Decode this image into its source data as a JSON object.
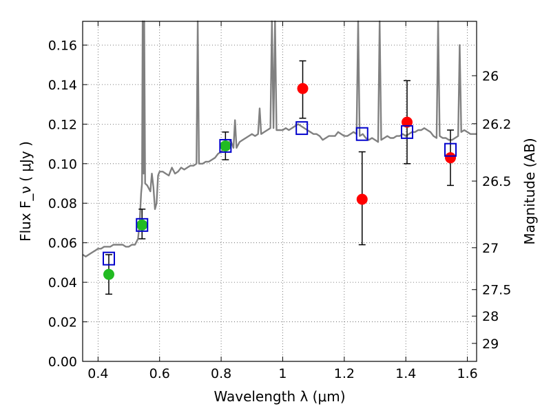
{
  "chart_data": {
    "type": "scatter",
    "xlabel": "Wavelength  λ (μm)",
    "ylabel_left": "Flux  F_ν  ( μJy )",
    "ylabel_right": "Magnitude (AB)",
    "xlim": [
      0.35,
      1.63
    ],
    "ylim": [
      0.0,
      0.172
    ],
    "grid": true,
    "x_ticks": [
      0.4,
      0.6,
      0.8,
      1.0,
      1.2,
      1.4,
      1.6
    ],
    "x_tick_labels": [
      "0.4",
      "0.6",
      "0.8",
      "1",
      "1.2",
      "1.4",
      "1.6"
    ],
    "y_ticks": [
      0.0,
      0.02,
      0.04,
      0.06,
      0.08,
      0.1,
      0.12,
      0.14,
      0.16
    ],
    "y_tick_labels": [
      "0.00",
      "0.02",
      "0.04",
      "0.06",
      "0.08",
      "0.10",
      "0.12",
      "0.14",
      "0.16"
    ],
    "right_ticks": [
      {
        "label": "26",
        "flux": 0.1445
      },
      {
        "label": "26.2",
        "flux": 0.1202
      },
      {
        "label": "26.5",
        "flux": 0.0912
      },
      {
        "label": "27",
        "flux": 0.0575
      },
      {
        "label": "27.5",
        "flux": 0.0363
      },
      {
        "label": "28",
        "flux": 0.0229
      },
      {
        "label": "29",
        "flux": 0.0091
      }
    ],
    "colors": {
      "model": "#808080",
      "green": "#22bb22",
      "red": "#ff0000",
      "square": "#0000cc",
      "errorbar": "#000000",
      "grid": "#555555"
    },
    "model_spectrum": [
      [
        0.35,
        0.054
      ],
      [
        0.36,
        0.053
      ],
      [
        0.37,
        0.054
      ],
      [
        0.38,
        0.055
      ],
      [
        0.39,
        0.056
      ],
      [
        0.4,
        0.057
      ],
      [
        0.41,
        0.057
      ],
      [
        0.42,
        0.058
      ],
      [
        0.43,
        0.058
      ],
      [
        0.44,
        0.058
      ],
      [
        0.45,
        0.059
      ],
      [
        0.46,
        0.059
      ],
      [
        0.47,
        0.059
      ],
      [
        0.48,
        0.059
      ],
      [
        0.49,
        0.058
      ],
      [
        0.5,
        0.058
      ],
      [
        0.51,
        0.059
      ],
      [
        0.52,
        0.059
      ],
      [
        0.53,
        0.062
      ],
      [
        0.535,
        0.07
      ],
      [
        0.54,
        0.085
      ],
      [
        0.543,
        0.09
      ],
      [
        0.545,
        0.172
      ],
      [
        0.548,
        0.095
      ],
      [
        0.55,
        0.172
      ],
      [
        0.553,
        0.09
      ],
      [
        0.56,
        0.089
      ],
      [
        0.57,
        0.086
      ],
      [
        0.575,
        0.095
      ],
      [
        0.58,
        0.088
      ],
      [
        0.585,
        0.077
      ],
      [
        0.59,
        0.08
      ],
      [
        0.595,
        0.094
      ],
      [
        0.6,
        0.096
      ],
      [
        0.61,
        0.096
      ],
      [
        0.62,
        0.095
      ],
      [
        0.63,
        0.094
      ],
      [
        0.64,
        0.098
      ],
      [
        0.65,
        0.095
      ],
      [
        0.66,
        0.096
      ],
      [
        0.67,
        0.098
      ],
      [
        0.68,
        0.097
      ],
      [
        0.69,
        0.098
      ],
      [
        0.7,
        0.099
      ],
      [
        0.71,
        0.099
      ],
      [
        0.72,
        0.1
      ],
      [
        0.724,
        0.172
      ],
      [
        0.728,
        0.1
      ],
      [
        0.74,
        0.1
      ],
      [
        0.75,
        0.101
      ],
      [
        0.76,
        0.101
      ],
      [
        0.77,
        0.102
      ],
      [
        0.78,
        0.103
      ],
      [
        0.79,
        0.105
      ],
      [
        0.8,
        0.106
      ],
      [
        0.81,
        0.108
      ],
      [
        0.82,
        0.109
      ],
      [
        0.83,
        0.112
      ],
      [
        0.84,
        0.108
      ],
      [
        0.845,
        0.122
      ],
      [
        0.85,
        0.108
      ],
      [
        0.86,
        0.111
      ],
      [
        0.87,
        0.112
      ],
      [
        0.88,
        0.113
      ],
      [
        0.89,
        0.114
      ],
      [
        0.9,
        0.115
      ],
      [
        0.91,
        0.114
      ],
      [
        0.92,
        0.115
      ],
      [
        0.925,
        0.128
      ],
      [
        0.93,
        0.115
      ],
      [
        0.94,
        0.116
      ],
      [
        0.95,
        0.117
      ],
      [
        0.96,
        0.118
      ],
      [
        0.965,
        0.172
      ],
      [
        0.97,
        0.118
      ],
      [
        0.975,
        0.172
      ],
      [
        0.98,
        0.117
      ],
      [
        0.99,
        0.117
      ],
      [
        1.0,
        0.117
      ],
      [
        1.01,
        0.118
      ],
      [
        1.02,
        0.117
      ],
      [
        1.03,
        0.118
      ],
      [
        1.04,
        0.119
      ],
      [
        1.05,
        0.12
      ],
      [
        1.06,
        0.119
      ],
      [
        1.07,
        0.118
      ],
      [
        1.08,
        0.117
      ],
      [
        1.09,
        0.116
      ],
      [
        1.1,
        0.115
      ],
      [
        1.11,
        0.115
      ],
      [
        1.12,
        0.114
      ],
      [
        1.13,
        0.112
      ],
      [
        1.14,
        0.113
      ],
      [
        1.15,
        0.114
      ],
      [
        1.16,
        0.114
      ],
      [
        1.17,
        0.114
      ],
      [
        1.18,
        0.116
      ],
      [
        1.19,
        0.115
      ],
      [
        1.2,
        0.114
      ],
      [
        1.21,
        0.114
      ],
      [
        1.22,
        0.115
      ],
      [
        1.23,
        0.116
      ],
      [
        1.24,
        0.115
      ],
      [
        1.245,
        0.172
      ],
      [
        1.25,
        0.114
      ],
      [
        1.26,
        0.115
      ],
      [
        1.27,
        0.113
      ],
      [
        1.28,
        0.112
      ],
      [
        1.29,
        0.113
      ],
      [
        1.3,
        0.112
      ],
      [
        1.31,
        0.111
      ],
      [
        1.315,
        0.172
      ],
      [
        1.32,
        0.112
      ],
      [
        1.33,
        0.113
      ],
      [
        1.34,
        0.114
      ],
      [
        1.35,
        0.113
      ],
      [
        1.36,
        0.113
      ],
      [
        1.37,
        0.114
      ],
      [
        1.38,
        0.114
      ],
      [
        1.39,
        0.115
      ],
      [
        1.4,
        0.114
      ],
      [
        1.41,
        0.115
      ],
      [
        1.42,
        0.116
      ],
      [
        1.43,
        0.116
      ],
      [
        1.44,
        0.117
      ],
      [
        1.45,
        0.117
      ],
      [
        1.46,
        0.118
      ],
      [
        1.47,
        0.117
      ],
      [
        1.48,
        0.116
      ],
      [
        1.49,
        0.114
      ],
      [
        1.5,
        0.113
      ],
      [
        1.505,
        0.172
      ],
      [
        1.51,
        0.114
      ],
      [
        1.52,
        0.113
      ],
      [
        1.53,
        0.113
      ],
      [
        1.54,
        0.112
      ],
      [
        1.55,
        0.112
      ],
      [
        1.56,
        0.113
      ],
      [
        1.57,
        0.114
      ],
      [
        1.575,
        0.16
      ],
      [
        1.58,
        0.116
      ],
      [
        1.59,
        0.117
      ],
      [
        1.6,
        0.116
      ],
      [
        1.61,
        0.115
      ],
      [
        1.62,
        0.115
      ],
      [
        1.63,
        0.115
      ]
    ],
    "squares": [
      {
        "x": 0.435,
        "y": 0.052
      },
      {
        "x": 0.543,
        "y": 0.069
      },
      {
        "x": 0.814,
        "y": 0.109
      },
      {
        "x": 1.062,
        "y": 0.118
      },
      {
        "x": 1.258,
        "y": 0.115
      },
      {
        "x": 1.404,
        "y": 0.116
      },
      {
        "x": 1.545,
        "y": 0.107
      }
    ],
    "green_points": [
      {
        "x": 0.435,
        "y": 0.044,
        "err_low": 0.034,
        "err_high": 0.054
      },
      {
        "x": 0.543,
        "y": 0.069,
        "err_low": 0.062,
        "err_high": 0.077
      },
      {
        "x": 0.814,
        "y": 0.109,
        "err_low": 0.102,
        "err_high": 0.116
      }
    ],
    "red_points": [
      {
        "x": 1.065,
        "y": 0.138,
        "err_low": 0.123,
        "err_high": 0.152
      },
      {
        "x": 1.258,
        "y": 0.082,
        "err_low": 0.059,
        "err_high": 0.106
      },
      {
        "x": 1.404,
        "y": 0.121,
        "err_low": 0.1,
        "err_high": 0.142
      },
      {
        "x": 1.545,
        "y": 0.103,
        "err_low": 0.089,
        "err_high": 0.117
      }
    ]
  }
}
